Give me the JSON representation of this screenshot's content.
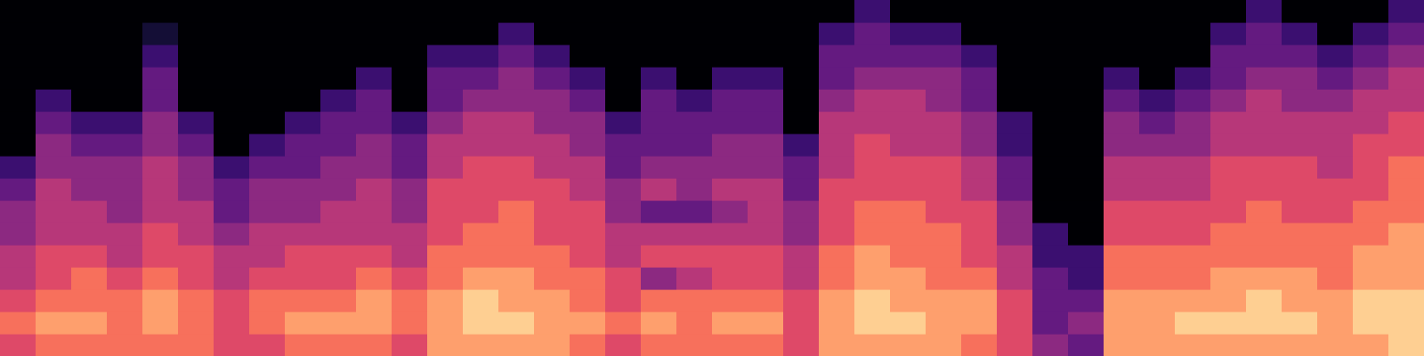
{
  "chart_data": {
    "type": "heatmap",
    "tick_labels": false,
    "value_range": [
      0,
      10
    ],
    "cells": [
      [
        6,
        7,
        6,
        5,
        5,
        4,
        4,
        3,
        2,
        0,
        0,
        0,
        0,
        0,
        0,
        0
      ],
      [
        7,
        8,
        7,
        6,
        6,
        5,
        5,
        5,
        4,
        4,
        3,
        2,
        0,
        0,
        0,
        0
      ],
      [
        7,
        8,
        7,
        7,
        6,
        5,
        5,
        4,
        4,
        3,
        2,
        0,
        0,
        0,
        0,
        0
      ],
      [
        7,
        7,
        7,
        6,
        5,
        5,
        4,
        4,
        4,
        3,
        2,
        0,
        0,
        0,
        0,
        0
      ],
      [
        7,
        8,
        8,
        7,
        6,
        6,
        5,
        5,
        5,
        4,
        4,
        3,
        3,
        2,
        1,
        0
      ],
      [
        7,
        7,
        7,
        6,
        6,
        5,
        5,
        4,
        4,
        3,
        2,
        0,
        0,
        0,
        0,
        0
      ],
      [
        6,
        6,
        6,
        5,
        5,
        4,
        3,
        3,
        2,
        0,
        0,
        0,
        0,
        0,
        0,
        0
      ],
      [
        6,
        7,
        7,
        6,
        5,
        5,
        4,
        4,
        3,
        2,
        0,
        0,
        0,
        0,
        0,
        0
      ],
      [
        7,
        8,
        7,
        6,
        6,
        5,
        4,
        4,
        3,
        3,
        2,
        0,
        0,
        0,
        0,
        0
      ],
      [
        7,
        8,
        7,
        6,
        6,
        5,
        5,
        4,
        4,
        3,
        3,
        2,
        0,
        0,
        0,
        0
      ],
      [
        7,
        8,
        8,
        7,
        6,
        5,
        5,
        5,
        4,
        4,
        3,
        3,
        2,
        0,
        0,
        0
      ],
      [
        6,
        7,
        7,
        6,
        5,
        5,
        4,
        4,
        3,
        3,
        2,
        0,
        0,
        0,
        0,
        0
      ],
      [
        8,
        8,
        8,
        7,
        7,
        6,
        6,
        6,
        5,
        5,
        4,
        3,
        3,
        2,
        0,
        0
      ],
      [
        8,
        9,
        9,
        8,
        7,
        7,
        6,
        6,
        6,
        5,
        5,
        4,
        3,
        2,
        0,
        0
      ],
      [
        8,
        9,
        8,
        8,
        7,
        7,
        7,
        6,
        6,
        5,
        5,
        4,
        4,
        3,
        2,
        0
      ],
      [
        8,
        8,
        8,
        7,
        7,
        6,
        6,
        6,
        5,
        5,
        4,
        4,
        3,
        2,
        0,
        0
      ],
      [
        7,
        8,
        7,
        7,
        6,
        6,
        6,
        5,
        5,
        4,
        4,
        3,
        2,
        0,
        0,
        0
      ],
      [
        6,
        7,
        6,
        6,
        5,
        5,
        4,
        4,
        3,
        3,
        2,
        0,
        0,
        0,
        0,
        0
      ],
      [
        7,
        8,
        7,
        4,
        6,
        5,
        3,
        5,
        4,
        3,
        3,
        3,
        2,
        0,
        0,
        0
      ],
      [
        7,
        7,
        7,
        5,
        6,
        5,
        3,
        4,
        4,
        3,
        3,
        2,
        0,
        0,
        0,
        0
      ],
      [
        7,
        8,
        7,
        6,
        6,
        5,
        4,
        5,
        4,
        4,
        3,
        3,
        2,
        0,
        0,
        0
      ],
      [
        7,
        8,
        7,
        6,
        6,
        5,
        5,
        5,
        4,
        4,
        3,
        3,
        2,
        0,
        0,
        0
      ],
      [
        6,
        6,
        6,
        5,
        5,
        4,
        4,
        3,
        3,
        2,
        0,
        0,
        0,
        0,
        0,
        0
      ],
      [
        8,
        8,
        8,
        7,
        7,
        6,
        6,
        6,
        5,
        5,
        5,
        4,
        3,
        3,
        2,
        0
      ],
      [
        8,
        9,
        9,
        8,
        8,
        7,
        7,
        6,
        6,
        6,
        5,
        5,
        4,
        3,
        3,
        2
      ],
      [
        8,
        9,
        8,
        8,
        7,
        7,
        7,
        6,
        6,
        5,
        5,
        5,
        4,
        3,
        2,
        0
      ],
      [
        8,
        8,
        8,
        7,
        7,
        7,
        6,
        6,
        6,
        5,
        5,
        4,
        4,
        3,
        2,
        0
      ],
      [
        7,
        8,
        8,
        7,
        6,
        6,
        6,
        5,
        5,
        4,
        4,
        3,
        3,
        2,
        0,
        0
      ],
      [
        6,
        6,
        6,
        5,
        5,
        4,
        4,
        3,
        3,
        2,
        2,
        0,
        0,
        0,
        0,
        0
      ],
      [
        4,
        3,
        3,
        3,
        2,
        2,
        0,
        0,
        0,
        0,
        0,
        0,
        0,
        0,
        0,
        0
      ],
      [
        3,
        4,
        3,
        2,
        2,
        0,
        0,
        0,
        0,
        0,
        0,
        0,
        0,
        0,
        0,
        0
      ],
      [
        8,
        8,
        8,
        7,
        7,
        6,
        6,
        5,
        5,
        4,
        4,
        3,
        2,
        0,
        0,
        0
      ],
      [
        8,
        8,
        8,
        7,
        7,
        6,
        6,
        5,
        5,
        4,
        3,
        2,
        0,
        0,
        0,
        0
      ],
      [
        8,
        9,
        8,
        7,
        7,
        6,
        6,
        5,
        5,
        4,
        4,
        3,
        2,
        0,
        0,
        0
      ],
      [
        8,
        9,
        8,
        8,
        7,
        7,
        6,
        6,
        6,
        5,
        5,
        4,
        3,
        3,
        2,
        0
      ],
      [
        8,
        9,
        9,
        8,
        7,
        7,
        7,
        6,
        6,
        5,
        5,
        5,
        4,
        3,
        3,
        2
      ],
      [
        8,
        9,
        8,
        8,
        7,
        7,
        6,
        6,
        6,
        5,
        5,
        4,
        4,
        3,
        2,
        0
      ],
      [
        8,
        8,
        8,
        7,
        7,
        7,
        6,
        6,
        5,
        5,
        5,
        4,
        3,
        2,
        0,
        0
      ],
      [
        8,
        9,
        9,
        8,
        8,
        7,
        7,
        6,
        6,
        6,
        5,
        5,
        4,
        3,
        2,
        0
      ],
      [
        9,
        9,
        9,
        8,
        8,
        8,
        7,
        7,
        7,
        6,
        6,
        5,
        5,
        4,
        3,
        2
      ]
    ]
  }
}
